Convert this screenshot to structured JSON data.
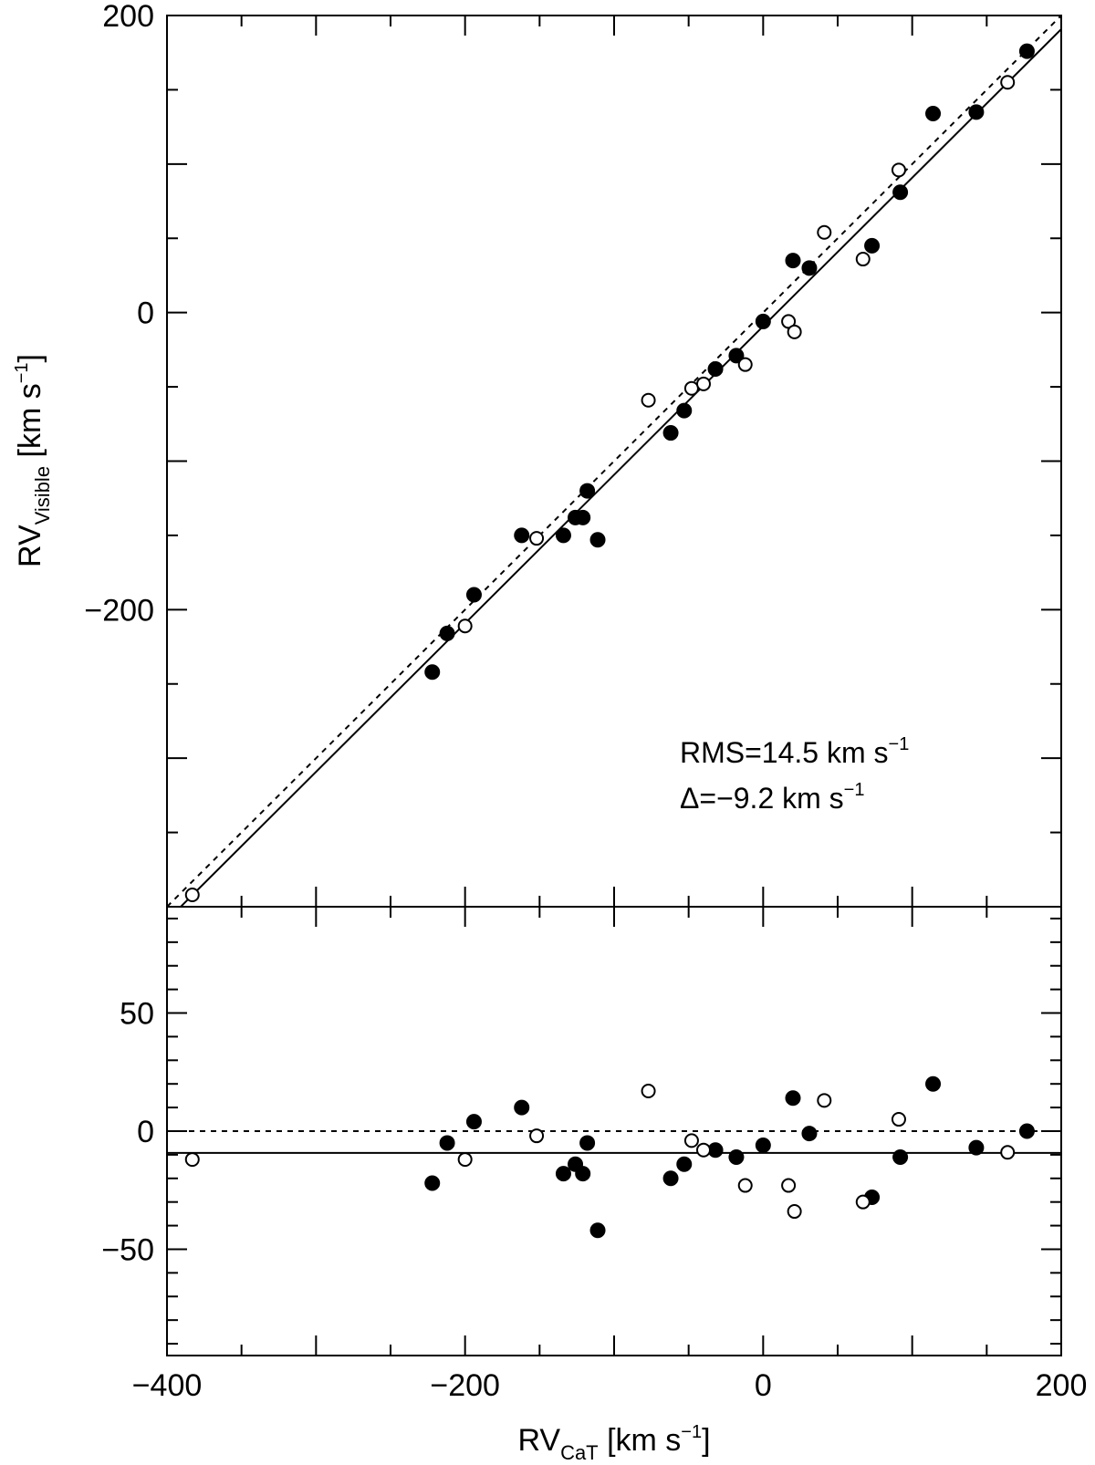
{
  "chart_data": [
    {
      "panel": "top",
      "type": "scatter",
      "xlim": [
        -400,
        200
      ],
      "ylim": [
        -400,
        200
      ],
      "x_ticks": [
        -400,
        -200,
        0,
        200
      ],
      "y_ticks": [
        -200,
        0,
        200
      ],
      "x_tick_labels": [
        "",
        "",
        "",
        ""
      ],
      "y_tick_labels": [
        "−200",
        "0",
        "200"
      ],
      "ylabel": {
        "main": "RV",
        "sub": "Visible",
        "unit": "[km s",
        "exp": "−1",
        "close": "]"
      },
      "grid": false,
      "lines": [
        {
          "style": "dotted",
          "slope": 1,
          "intercept": 0
        },
        {
          "style": "solid",
          "slope": 1,
          "intercept": -9.2
        }
      ],
      "annotations": [
        {
          "text": "RMS=14.5 km s",
          "exp": "−1"
        },
        {
          "text": "Δ=−9.2 km s",
          "exp": "−1"
        }
      ],
      "series": [
        {
          "marker": "filled-circle",
          "points": [
            [
              -222,
              -242
            ],
            [
              -212,
              -216
            ],
            [
              -194,
              -190
            ],
            [
              -162,
              -150
            ],
            [
              -134,
              -150
            ],
            [
              -126,
              -138
            ],
            [
              -121,
              -138
            ],
            [
              -118,
              -120
            ],
            [
              -111,
              -153
            ],
            [
              -62,
              -81
            ],
            [
              -53,
              -66
            ],
            [
              -32,
              -38
            ],
            [
              -18,
              -29
            ],
            [
              0,
              -6
            ],
            [
              20,
              35
            ],
            [
              31,
              30
            ],
            [
              73,
              45
            ],
            [
              92,
              81
            ],
            [
              114,
              134
            ],
            [
              143,
              135
            ],
            [
              177,
              176
            ]
          ]
        },
        {
          "marker": "open-circle",
          "points": [
            [
              -383,
              -392
            ],
            [
              -200,
              -211
            ],
            [
              -152,
              -152
            ],
            [
              -77,
              -59
            ],
            [
              -48,
              -51
            ],
            [
              -40,
              -48
            ],
            [
              -12,
              -35
            ],
            [
              17,
              -6
            ],
            [
              21,
              -13
            ],
            [
              41,
              54
            ],
            [
              67,
              36
            ],
            [
              91,
              96
            ],
            [
              164,
              155
            ]
          ]
        }
      ]
    },
    {
      "panel": "bottom",
      "type": "scatter",
      "xlim": [
        -400,
        200
      ],
      "ylim": [
        -95,
        95
      ],
      "x_ticks": [
        -400,
        -200,
        0,
        200
      ],
      "y_ticks": [
        -50,
        0,
        50
      ],
      "x_tick_labels": [
        "−400",
        "−200",
        "0",
        "200"
      ],
      "y_tick_labels": [
        "−50",
        "0",
        "50"
      ],
      "xlabel": {
        "main": "RV",
        "sub": "CaT",
        "unit": "[km s",
        "exp": "−1",
        "close": "]"
      },
      "grid": false,
      "lines": [
        {
          "style": "dotted",
          "y": 0
        },
        {
          "style": "solid",
          "y": -9.2
        }
      ],
      "series": [
        {
          "marker": "filled-circle",
          "points": [
            [
              -222,
              -22
            ],
            [
              -212,
              -5
            ],
            [
              -194,
              4
            ],
            [
              -162,
              10
            ],
            [
              -134,
              -18
            ],
            [
              -126,
              -14
            ],
            [
              -121,
              -18
            ],
            [
              -118,
              -5
            ],
            [
              -111,
              -42
            ],
            [
              -62,
              -20
            ],
            [
              -53,
              -14
            ],
            [
              -32,
              -8
            ],
            [
              -18,
              -11
            ],
            [
              0,
              -6
            ],
            [
              20,
              14
            ],
            [
              31,
              -1
            ],
            [
              73,
              -28
            ],
            [
              92,
              -11
            ],
            [
              114,
              20
            ],
            [
              143,
              -7
            ],
            [
              177,
              0
            ]
          ]
        },
        {
          "marker": "open-circle",
          "points": [
            [
              -383,
              -12
            ],
            [
              -200,
              -12
            ],
            [
              -152,
              -2
            ],
            [
              -77,
              17
            ],
            [
              -48,
              -4
            ],
            [
              -40,
              -8
            ],
            [
              -12,
              -23
            ],
            [
              17,
              -23
            ],
            [
              21,
              -34
            ],
            [
              41,
              13
            ],
            [
              67,
              -30
            ],
            [
              91,
              5
            ],
            [
              164,
              -9
            ]
          ]
        }
      ]
    }
  ]
}
